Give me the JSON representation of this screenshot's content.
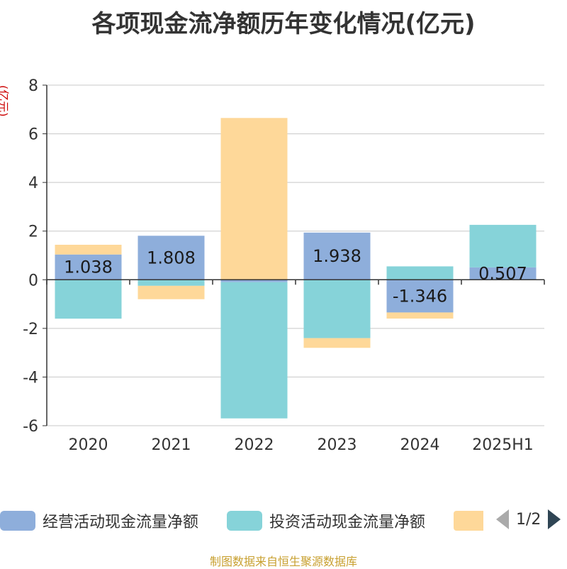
{
  "title": "各项现金流净额历年变化情况(亿元)",
  "unit_label": "(亿元)",
  "source": "制图数据来自恒生聚源数据库",
  "legend_page": "1/2",
  "chart_data": {
    "type": "bar",
    "stacked": true,
    "categories": [
      "2020",
      "2021",
      "2022",
      "2023",
      "2024",
      "2025H1"
    ],
    "ylim": [
      -6,
      8
    ],
    "yticks": [
      8,
      6,
      4,
      2,
      0,
      -2,
      -4,
      -6
    ],
    "grid": true,
    "legend_position": "bottom",
    "series": [
      {
        "name": "经营活动现金流量净额",
        "color": "#8eaedb",
        "values": [
          1.038,
          1.808,
          -0.1,
          1.938,
          -1.346,
          0.507
        ],
        "labels": [
          "1.038",
          "1.808",
          "",
          "1.938",
          "-1.346",
          "0.507"
        ]
      },
      {
        "name": "投资活动现金流量净额",
        "color": "#86d3d9",
        "values": [
          -1.6,
          -0.25,
          -5.6,
          -2.4,
          0.55,
          1.75
        ]
      },
      {
        "name": "",
        "color": "#fed899",
        "values": [
          0.4,
          -0.55,
          6.65,
          -0.4,
          -0.25,
          0.0
        ]
      }
    ]
  }
}
